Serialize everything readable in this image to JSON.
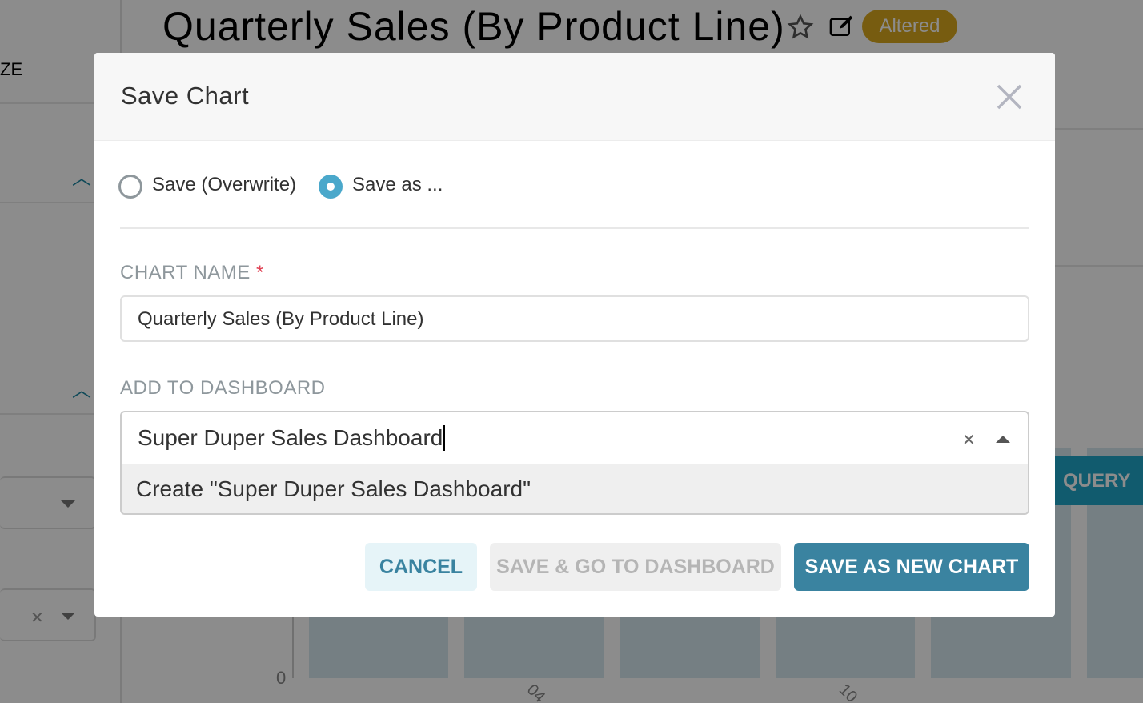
{
  "background": {
    "chart_title": "Quarterly Sales (By Product Line)",
    "status_badge": "Altered",
    "left_panel_partial_label": "ZE",
    "query_button_partial": "QUERY",
    "y_axis_tick": "0",
    "x_axis_ticks": [
      "04",
      "10"
    ],
    "colors": {
      "badge": "#d9a81e",
      "accent": "#20a7c9"
    }
  },
  "modal": {
    "title": "Save Chart",
    "radio_options": [
      {
        "label": "Save (Overwrite)",
        "selected": false
      },
      {
        "label": "Save as ...",
        "selected": true
      }
    ],
    "chart_name_label": "CHART NAME",
    "required_mark": "*",
    "chart_name_value": "Quarterly Sales (By Product Line)",
    "dashboard_label": "ADD TO DASHBOARD",
    "dashboard_input_value": "Super Duper Sales Dashboard",
    "dropdown_option": "Create \"Super Duper Sales Dashboard\"",
    "buttons": {
      "cancel": "CANCEL",
      "save_go": "SAVE & GO TO DASHBOARD",
      "save_new": "SAVE AS NEW CHART"
    },
    "colors": {
      "primary": "#3a83a0",
      "radio": "#4aa8cb",
      "required": "#e04355"
    }
  }
}
